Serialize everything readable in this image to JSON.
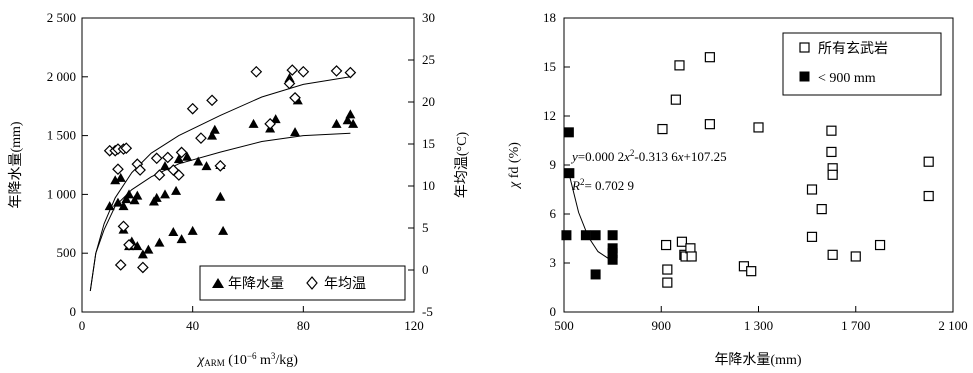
{
  "chart_data": [
    {
      "type": "scatter",
      "xlabel": "χARM (10⁻⁶ m³/kg)",
      "ylabel_left": "年降水量(mm)",
      "ylabel_right": "年均温(°C)",
      "xlim": [
        0,
        120
      ],
      "ylim_left": [
        0,
        2500
      ],
      "ylim_right": [
        -5,
        30
      ],
      "x_ticks": [
        "0",
        "40",
        "80",
        "120"
      ],
      "y_ticks_left": [
        "0",
        "500",
        "1 000",
        "1 500",
        "2 000",
        "2 500"
      ],
      "y_ticks_right": [
        "-5",
        "0",
        "5",
        "10",
        "15",
        "20",
        "25",
        "30"
      ],
      "legend": {
        "position": "bottom-right",
        "entries": [
          {
            "marker": "filled-triangle",
            "label": "年降水量"
          },
          {
            "marker": "open-diamond",
            "label": "年均温"
          }
        ]
      },
      "series": [
        {
          "name": "年降水量",
          "axis": "left",
          "marker": "filled-triangle",
          "points": [
            [
              10,
              900
            ],
            [
              12,
              1120
            ],
            [
              13,
              930
            ],
            [
              14,
              1140
            ],
            [
              15,
              900
            ],
            [
              15,
              700
            ],
            [
              16,
              960
            ],
            [
              17,
              1000
            ],
            [
              17,
              560
            ],
            [
              18,
              600
            ],
            [
              19,
              950
            ],
            [
              20,
              990
            ],
            [
              20,
              560
            ],
            [
              22,
              490
            ],
            [
              24,
              530
            ],
            [
              26,
              940
            ],
            [
              27,
              970
            ],
            [
              28,
              590
            ],
            [
              30,
              1240
            ],
            [
              30,
              1000
            ],
            [
              33,
              680
            ],
            [
              34,
              1030
            ],
            [
              35,
              1300
            ],
            [
              36,
              620
            ],
            [
              38,
              1320
            ],
            [
              40,
              690
            ],
            [
              42,
              1280
            ],
            [
              45,
              1240
            ],
            [
              47,
              1500
            ],
            [
              48,
              1550
            ],
            [
              50,
              1250
            ],
            [
              50,
              980
            ],
            [
              51,
              690
            ],
            [
              62,
              1600
            ],
            [
              68,
              1560
            ],
            [
              70,
              1640
            ],
            [
              75,
              1990
            ],
            [
              77,
              1530
            ],
            [
              78,
              1800
            ],
            [
              92,
              1600
            ],
            [
              96,
              1630
            ],
            [
              97,
              1680
            ],
            [
              98,
              1600
            ]
          ]
        },
        {
          "name": "年均温",
          "axis": "right",
          "marker": "open-diamond",
          "points": [
            [
              10,
              14.2
            ],
            [
              12,
              14.2
            ],
            [
              13,
              14.4
            ],
            [
              13,
              12.0
            ],
            [
              15,
              14.4
            ],
            [
              16,
              14.5
            ],
            [
              14,
              0.6
            ],
            [
              15,
              5.2
            ],
            [
              17,
              3.0
            ],
            [
              20,
              12.6
            ],
            [
              21,
              11.9
            ],
            [
              22,
              0.3
            ],
            [
              27,
              13.3
            ],
            [
              28,
              11.3
            ],
            [
              31,
              13.4
            ],
            [
              33,
              11.9
            ],
            [
              35,
              11.3
            ],
            [
              36,
              14.0
            ],
            [
              40,
              19.2
            ],
            [
              43,
              15.7
            ],
            [
              47,
              20.2
            ],
            [
              50,
              12.4
            ],
            [
              63,
              23.6
            ],
            [
              68,
              17.4
            ],
            [
              75,
              22.2
            ],
            [
              76,
              23.8
            ],
            [
              77,
              20.5
            ],
            [
              80,
              23.6
            ],
            [
              92,
              23.7
            ],
            [
              97,
              23.5
            ]
          ]
        }
      ],
      "fit_curves": [
        {
          "series": "年降水量",
          "points": [
            [
              3,
              180
            ],
            [
              5,
              500
            ],
            [
              8,
              700
            ],
            [
              12,
              900
            ],
            [
              18,
              1040
            ],
            [
              25,
              1150
            ],
            [
              35,
              1260
            ],
            [
              50,
              1360
            ],
            [
              65,
              1450
            ],
            [
              80,
              1500
            ],
            [
              97,
              1520
            ]
          ]
        },
        {
          "series": "年均温",
          "points": [
            [
              3,
              -2.5
            ],
            [
              5,
              2
            ],
            [
              8,
              5.5
            ],
            [
              12,
              8.6
            ],
            [
              18,
              11.6
            ],
            [
              25,
              13.9
            ],
            [
              35,
              16.0
            ],
            [
              50,
              18.4
            ],
            [
              65,
              20.6
            ],
            [
              80,
              22.1
            ],
            [
              97,
              23.0
            ]
          ]
        }
      ]
    },
    {
      "type": "scatter",
      "xlabel": "年降水量(mm)",
      "ylabel": "χfd (%)",
      "xlim": [
        500,
        2100
      ],
      "ylim": [
        0,
        18
      ],
      "x_ticks": [
        "500",
        "900",
        "1 300",
        "1 700",
        "2 100"
      ],
      "y_ticks": [
        "0",
        "3",
        "6",
        "9",
        "12",
        "15",
        "18"
      ],
      "legend": {
        "position": "top-right",
        "entries": [
          {
            "marker": "open-square",
            "label": "所有玄武岩"
          },
          {
            "marker": "filled-square",
            "label": "< 900 mm"
          }
        ]
      },
      "annotation": {
        "equation": "y=0.000 2x²-0.313 6x+107.25",
        "r2": "R²= 0.702 9"
      },
      "series": [
        {
          "name": "所有玄武岩",
          "marker": "open-square",
          "points": [
            [
              905,
              11.2
            ],
            [
              920,
              4.1
            ],
            [
              925,
              2.6
            ],
            [
              925,
              1.8
            ],
            [
              960,
              13.0
            ],
            [
              975,
              15.1
            ],
            [
              985,
              4.3
            ],
            [
              995,
              3.5
            ],
            [
              1000,
              3.4
            ],
            [
              1020,
              3.9
            ],
            [
              1025,
              3.4
            ],
            [
              1100,
              15.6
            ],
            [
              1100,
              11.5
            ],
            [
              1240,
              2.8
            ],
            [
              1270,
              2.5
            ],
            [
              1300,
              11.3
            ],
            [
              1520,
              7.5
            ],
            [
              1520,
              4.6
            ],
            [
              1560,
              6.3
            ],
            [
              1600,
              11.1
            ],
            [
              1600,
              9.8
            ],
            [
              1605,
              8.8
            ],
            [
              1605,
              8.4
            ],
            [
              1605,
              3.5
            ],
            [
              1700,
              3.4
            ],
            [
              1800,
              4.1
            ],
            [
              2000,
              9.2
            ],
            [
              2000,
              7.1
            ]
          ]
        },
        {
          "name": "< 900 mm",
          "marker": "filled-square",
          "points": [
            [
              520,
              11.0
            ],
            [
              522,
              8.5
            ],
            [
              510,
              4.7
            ],
            [
              590,
              4.7
            ],
            [
              630,
              4.7
            ],
            [
              630,
              2.3
            ],
            [
              700,
              4.7
            ],
            [
              700,
              3.9
            ],
            [
              700,
              3.6
            ],
            [
              700,
              3.2
            ]
          ]
        }
      ],
      "fit_curve": {
        "series": "< 900 mm",
        "points": [
          [
            520,
            8.5
          ],
          [
            560,
            6.1
          ],
          [
            600,
            4.6
          ],
          [
            640,
            3.7
          ],
          [
            680,
            3.3
          ],
          [
            700,
            3.25
          ]
        ]
      }
    }
  ]
}
